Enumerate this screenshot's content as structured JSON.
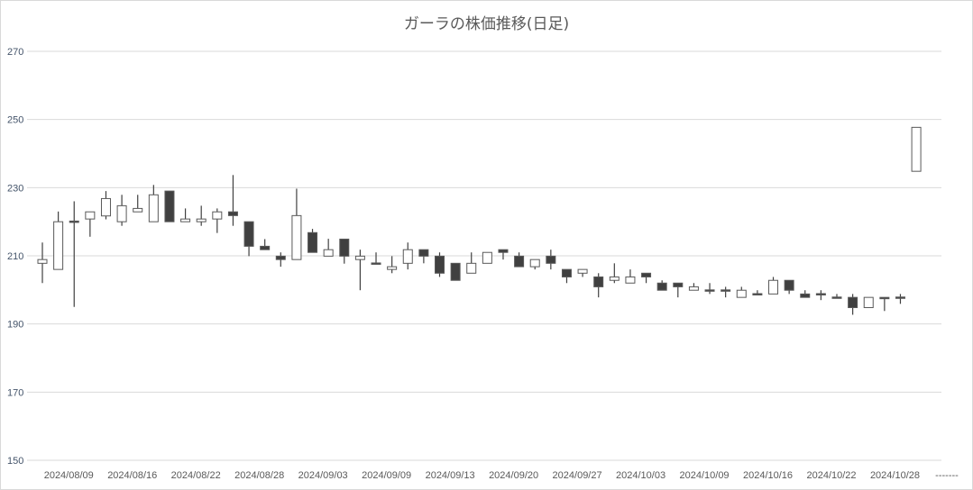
{
  "chart_data": {
    "type": "candlestick",
    "title": "ガーラの株価推移(日足)",
    "ylim": [
      150,
      270
    ],
    "yticks": [
      150,
      170,
      190,
      210,
      230,
      250,
      270
    ],
    "grid": true,
    "colors": {
      "up_fill": "#ffffff",
      "down_fill": "#404040",
      "stroke": "#595959",
      "grid": "#d9d9d9"
    },
    "x_tick_labels": [
      {
        "label": "2024/08/09",
        "candle": 2
      },
      {
        "label": "2024/08/16",
        "candle": 6
      },
      {
        "label": "2024/08/22",
        "candle": 10
      },
      {
        "label": "2024/08/28",
        "candle": 14
      },
      {
        "label": "2024/09/03",
        "candle": 18
      },
      {
        "label": "2024/09/09",
        "candle": 22
      },
      {
        "label": "2024/09/13",
        "candle": 26
      },
      {
        "label": "2024/09/20",
        "candle": 30
      },
      {
        "label": "2024/09/27",
        "candle": 34
      },
      {
        "label": "2024/10/03",
        "candle": 38
      },
      {
        "label": "2024/10/09",
        "candle": 42
      },
      {
        "label": "2024/10/16",
        "candle": 46
      },
      {
        "label": "2024/10/22",
        "candle": 50
      },
      {
        "label": "2024/10/28",
        "candle": 54
      }
    ],
    "clipped_label": "-------",
    "candles": [
      [
        207.8,
        213.9,
        202.0,
        208.9
      ],
      [
        206.0,
        223.0,
        206.0,
        220.0
      ],
      [
        220.2,
        226.0,
        195.0,
        219.8
      ],
      [
        220.8,
        222.9,
        215.6,
        222.9
      ],
      [
        221.7,
        229.0,
        220.7,
        226.8
      ],
      [
        220.0,
        227.9,
        218.8,
        224.7
      ],
      [
        222.9,
        227.9,
        222.9,
        223.9
      ],
      [
        220.0,
        230.8,
        220.0,
        227.9
      ],
      [
        229.0,
        229.0,
        220.0,
        220.0
      ],
      [
        220.0,
        223.9,
        220.0,
        220.8
      ],
      [
        220.0,
        224.7,
        218.8,
        220.8
      ],
      [
        220.8,
        223.9,
        216.7,
        222.9
      ],
      [
        222.9,
        233.7,
        218.8,
        221.8
      ],
      [
        220.0,
        220.0,
        209.9,
        212.8
      ],
      [
        212.8,
        214.9,
        211.8,
        211.8
      ],
      [
        209.9,
        211.0,
        206.8,
        208.9
      ],
      [
        208.9,
        229.7,
        208.9,
        221.8
      ],
      [
        216.8,
        217.9,
        211.0,
        211.0
      ],
      [
        209.9,
        215.0,
        209.9,
        211.8
      ],
      [
        214.9,
        214.9,
        207.7,
        209.9
      ],
      [
        208.9,
        211.8,
        199.9,
        209.9
      ],
      [
        207.9,
        211.0,
        207.6,
        207.6
      ],
      [
        206.0,
        209.9,
        204.9,
        206.8
      ],
      [
        207.8,
        213.9,
        206.0,
        211.8
      ],
      [
        211.8,
        211.8,
        207.8,
        209.9
      ],
      [
        209.9,
        211.0,
        203.8,
        204.9
      ],
      [
        207.8,
        207.8,
        202.8,
        202.8
      ],
      [
        204.9,
        211.0,
        204.9,
        207.8
      ],
      [
        207.8,
        211.0,
        207.8,
        211.0
      ],
      [
        211.8,
        211.8,
        208.9,
        211.0
      ],
      [
        209.9,
        211.0,
        206.8,
        206.8
      ],
      [
        206.8,
        208.9,
        206.0,
        208.9
      ],
      [
        209.9,
        211.8,
        206.0,
        207.8
      ],
      [
        206.0,
        206.0,
        202.0,
        203.8
      ],
      [
        204.9,
        206.0,
        203.8,
        206.0
      ],
      [
        203.8,
        204.9,
        197.8,
        200.9
      ],
      [
        202.8,
        207.8,
        202.0,
        203.8
      ],
      [
        202.0,
        206.0,
        202.0,
        203.8
      ],
      [
        204.9,
        204.9,
        202.0,
        203.8
      ],
      [
        202.0,
        202.8,
        199.9,
        199.9
      ],
      [
        202.0,
        202.0,
        197.8,
        200.9
      ],
      [
        199.9,
        202.0,
        199.9,
        200.9
      ],
      [
        200.0,
        202.0,
        198.8,
        199.8
      ],
      [
        200.0,
        200.9,
        197.8,
        199.8
      ],
      [
        197.8,
        200.9,
        197.8,
        199.9
      ],
      [
        198.9,
        199.9,
        198.7,
        198.7
      ],
      [
        198.8,
        203.8,
        198.8,
        202.8
      ],
      [
        202.8,
        202.8,
        198.8,
        199.9
      ],
      [
        198.8,
        199.9,
        197.8,
        197.8
      ],
      [
        198.9,
        199.9,
        197.0,
        198.7
      ],
      [
        197.9,
        198.8,
        197.7,
        197.7
      ],
      [
        197.8,
        198.8,
        192.7,
        194.8
      ],
      [
        194.8,
        197.8,
        194.8,
        197.8
      ],
      [
        197.8,
        197.8,
        193.8,
        197.7
      ],
      [
        197.9,
        198.8,
        195.9,
        197.7
      ],
      [
        234.8,
        247.7,
        234.8,
        247.7
      ]
    ]
  }
}
